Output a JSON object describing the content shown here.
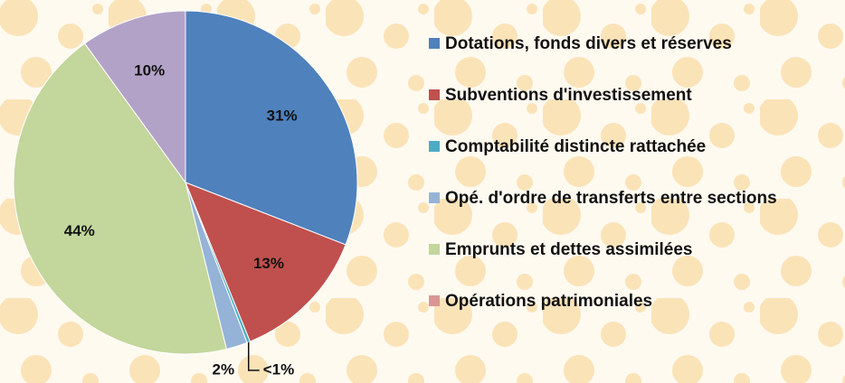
{
  "chart_data": {
    "type": "pie",
    "categories": [
      "Dotations, fonds divers et réserves",
      "Subventions d'investissement",
      "Comptabilité distincte rattachée",
      "Opé. d'ordre de transferts entre sections",
      "Emprunts et dettes assimilées",
      "Opérations patrimoniales",
      null
    ],
    "values": [
      31,
      13,
      0.3,
      2,
      44,
      0,
      10
    ],
    "value_labels": [
      "31%",
      "13%",
      "<1%",
      "2%",
      "44%",
      null,
      "10%"
    ],
    "colors": [
      "#4f81bd",
      "#c0504d",
      "#4bacc6",
      "#95b3d7",
      "#c3d69b",
      "#d99694",
      "#b3a2c7"
    ],
    "legend": "right"
  }
}
